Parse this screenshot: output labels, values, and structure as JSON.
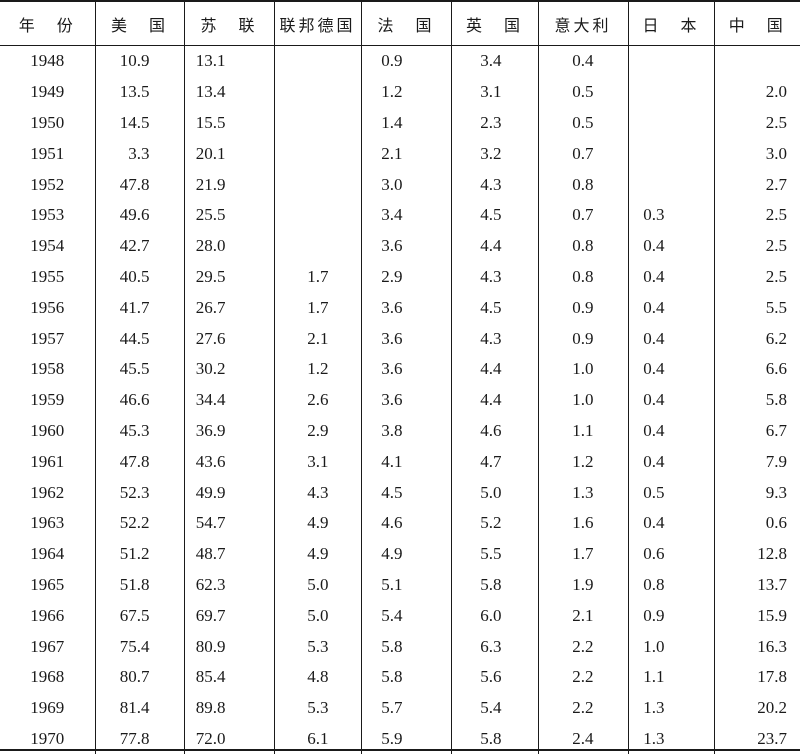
{
  "headers": [
    "年　份",
    "美　国",
    "苏　联",
    "联邦德国",
    "法　国",
    "英　国",
    "意大利",
    "日　本",
    "中　国"
  ],
  "rows": [
    [
      "1948",
      "10.9",
      "13.1",
      "",
      "0.9",
      "3.4",
      "0.4",
      "",
      ""
    ],
    [
      "1949",
      "13.5",
      "13.4",
      "",
      "1.2",
      "3.1",
      "0.5",
      "",
      "2.0"
    ],
    [
      "1950",
      "14.5",
      "15.5",
      "",
      "1.4",
      "2.3",
      "0.5",
      "",
      "2.5"
    ],
    [
      "1951",
      "3.3",
      "20.1",
      "",
      "2.1",
      "3.2",
      "0.7",
      "",
      "3.0"
    ],
    [
      "1952",
      "47.8",
      "21.9",
      "",
      "3.0",
      "4.3",
      "0.8",
      "",
      "2.7"
    ],
    [
      "1953",
      "49.6",
      "25.5",
      "",
      "3.4",
      "4.5",
      "0.7",
      "0.3",
      "2.5"
    ],
    [
      "1954",
      "42.7",
      "28.0",
      "",
      "3.6",
      "4.4",
      "0.8",
      "0.4",
      "2.5"
    ],
    [
      "1955",
      "40.5",
      "29.5",
      "1.7",
      "2.9",
      "4.3",
      "0.8",
      "0.4",
      "2.5"
    ],
    [
      "1956",
      "41.7",
      "26.7",
      "1.7",
      "3.6",
      "4.5",
      "0.9",
      "0.4",
      "5.5"
    ],
    [
      "1957",
      "44.5",
      "27.6",
      "2.1",
      "3.6",
      "4.3",
      "0.9",
      "0.4",
      "6.2"
    ],
    [
      "1958",
      "45.5",
      "30.2",
      "1.2",
      "3.6",
      "4.4",
      "1.0",
      "0.4",
      "6.6"
    ],
    [
      "1959",
      "46.6",
      "34.4",
      "2.6",
      "3.6",
      "4.4",
      "1.0",
      "0.4",
      "5.8"
    ],
    [
      "1960",
      "45.3",
      "36.9",
      "2.9",
      "3.8",
      "4.6",
      "1.1",
      "0.4",
      "6.7"
    ],
    [
      "1961",
      "47.8",
      "43.6",
      "3.1",
      "4.1",
      "4.7",
      "1.2",
      "0.4",
      "7.9"
    ],
    [
      "1962",
      "52.3",
      "49.9",
      "4.3",
      "4.5",
      "5.0",
      "1.3",
      "0.5",
      "9.3"
    ],
    [
      "1963",
      "52.2",
      "54.7",
      "4.9",
      "4.6",
      "5.2",
      "1.6",
      "0.4",
      "0.6"
    ],
    [
      "1964",
      "51.2",
      "48.7",
      "4.9",
      "4.9",
      "5.5",
      "1.7",
      "0.6",
      "12.8"
    ],
    [
      "1965",
      "51.8",
      "62.3",
      "5.0",
      "5.1",
      "5.8",
      "1.9",
      "0.8",
      "13.7"
    ],
    [
      "1966",
      "67.5",
      "69.7",
      "5.0",
      "5.4",
      "6.0",
      "2.1",
      "0.9",
      "15.9"
    ],
    [
      "1967",
      "75.4",
      "80.9",
      "5.3",
      "5.8",
      "6.3",
      "2.2",
      "1.0",
      "16.3"
    ],
    [
      "1968",
      "80.7",
      "85.4",
      "4.8",
      "5.8",
      "5.6",
      "2.2",
      "1.1",
      "17.8"
    ],
    [
      "1969",
      "81.4",
      "89.8",
      "5.3",
      "5.7",
      "5.4",
      "2.2",
      "1.3",
      "20.2"
    ],
    [
      "1970",
      "77.8",
      "72.0",
      "6.1",
      "5.9",
      "5.8",
      "2.4",
      "1.3",
      "23.7"
    ]
  ]
}
